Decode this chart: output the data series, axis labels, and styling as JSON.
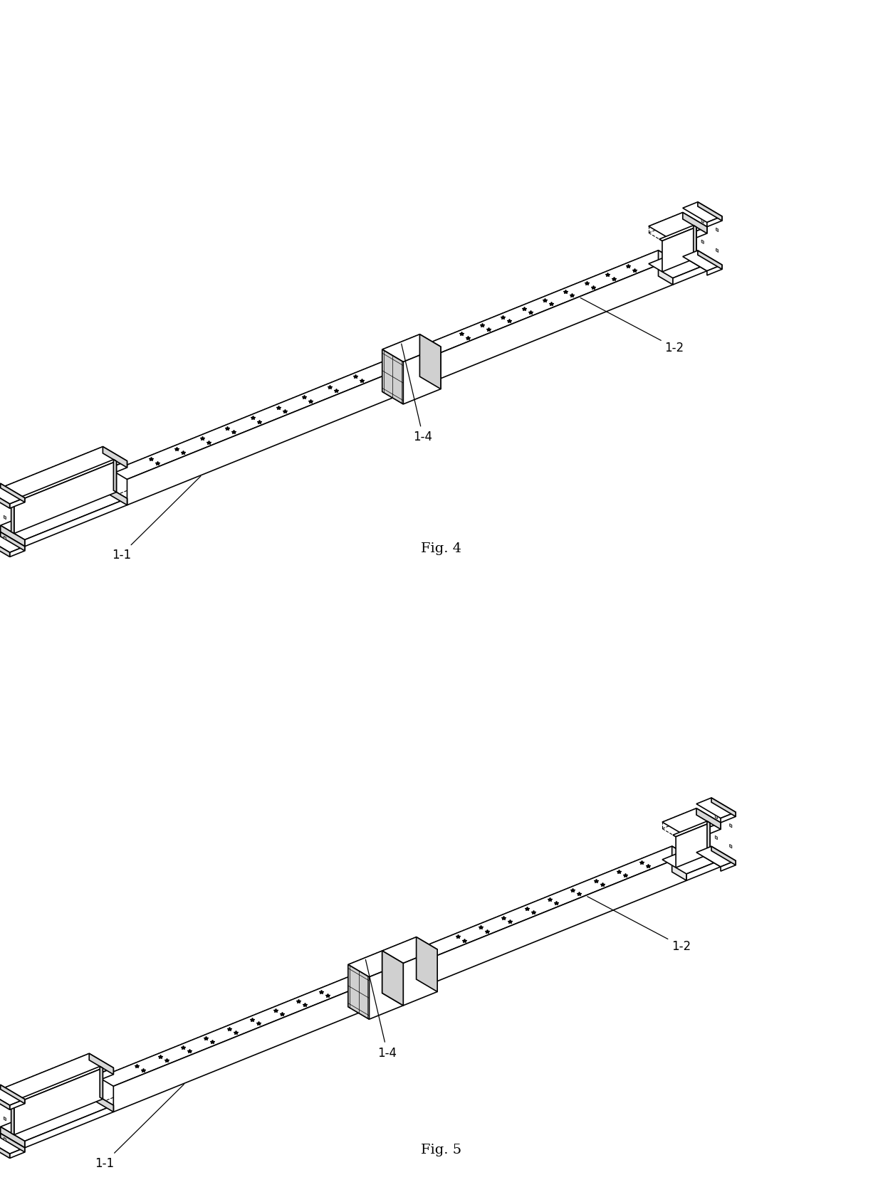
{
  "fig4_caption": "Fig. 4",
  "fig5_caption": "Fig. 5",
  "label_11": "1-1",
  "label_12": "1-2",
  "label_14": "1-4",
  "line_color": "#000000",
  "bg_color": "#ffffff",
  "line_width": 1.2,
  "dashed_lw": 0.8,
  "font_size_caption": 14,
  "font_size_label": 12
}
